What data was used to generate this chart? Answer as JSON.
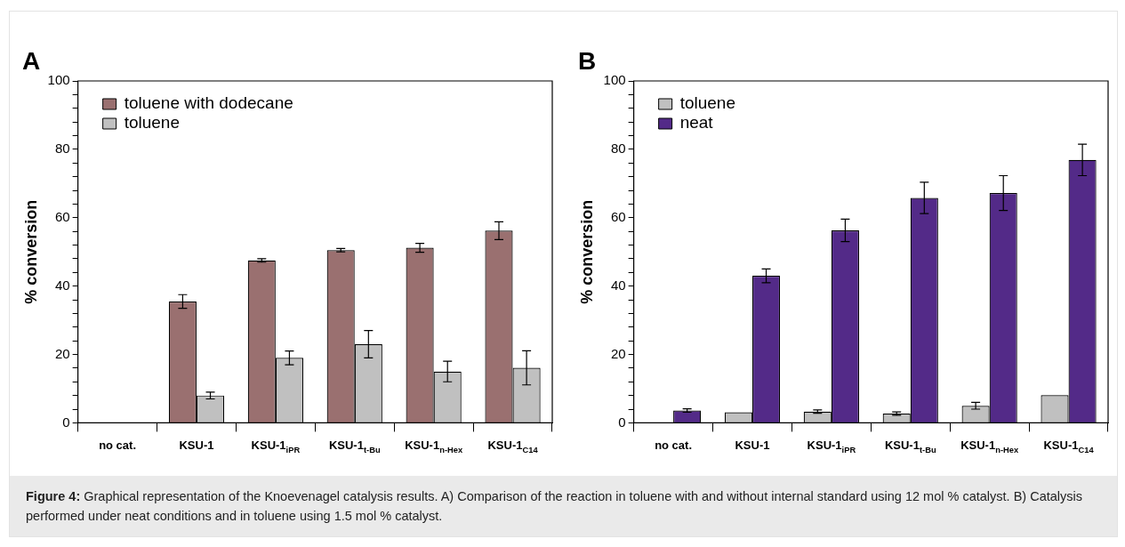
{
  "chart_data": [
    {
      "type": "bar",
      "title": "A",
      "ylabel": "% conversion",
      "categories": [
        "no cat.",
        "KSU-1",
        "KSU-1$_{iPR}$",
        "KSU-1$_{t-Bu}$",
        "KSU-1$_{n-Hex}$",
        "KSU-1$_{C14}$"
      ],
      "series": [
        {
          "name": "toluene with dodecane",
          "color": "#9a7070",
          "values": [
            0,
            35.5,
            47.5,
            50.5,
            51.2,
            56.2
          ],
          "errors": [
            null,
            2,
            0.5,
            0.5,
            1.3,
            2.6
          ]
        },
        {
          "name": "toluene",
          "color": "#c0c0c0",
          "values": [
            0,
            8,
            19,
            23,
            15,
            16.1
          ],
          "errors": [
            null,
            1,
            2,
            4,
            3,
            5
          ]
        }
      ],
      "ylim": [
        0,
        100
      ],
      "yticks": [
        0,
        {
          "value": 4,
          "label": null
        },
        {
          "value": 8,
          "label": null
        },
        {
          "value": 12,
          "label": null
        },
        {
          "value": 16,
          "label": null
        },
        20,
        {
          "value": 24,
          "label": null
        },
        {
          "value": 28,
          "label": null
        },
        {
          "value": 32,
          "label": null
        },
        {
          "value": 36,
          "label": null
        },
        40,
        {
          "value": 44,
          "label": null
        },
        {
          "value": 48,
          "label": null
        },
        {
          "value": 52,
          "label": null
        },
        {
          "value": 56,
          "label": null
        },
        60,
        {
          "value": 64,
          "label": null
        },
        {
          "value": 68,
          "label": null
        },
        {
          "value": 72,
          "label": null
        },
        {
          "value": 76,
          "label": null
        },
        80,
        {
          "value": 84,
          "label": null
        },
        {
          "value": 88,
          "label": null
        },
        {
          "value": 92,
          "label": null
        },
        {
          "value": 96,
          "label": null
        },
        100
      ],
      "grid": false,
      "legend": "top left",
      "annotations": [
        "Figure 4: Graphical representation of the Knoevenagel catalysis results. A) Comparison of the reaction in toluene with and without internal standard using 12 mol % catalyst. B) Catalysis performed under neat conditions and in toluene using 1.5 mol % catalyst."
      ]
    },
    {
      "type": "bar",
      "title": "B",
      "ylabel": "% conversion",
      "categories": [
        "no cat.",
        "KSU-1",
        "KSU-1$_{iPR}$",
        "KSU-1$_{t-Bu}$",
        "KSU-1$_{n-Hex}$",
        "KSU-1$_{C14}$"
      ],
      "series": [
        {
          "name": "toluene",
          "color": "#c0c0c0",
          "values": [
            0,
            3.1,
            3.3,
            2.7,
            5,
            8.1
          ],
          "errors": [
            null,
            null,
            0.5,
            0.5,
            1,
            null
          ]
        },
        {
          "name": "neat",
          "color": "#532a88",
          "values": [
            3.6,
            43,
            56.3,
            65.8,
            67.2,
            76.9
          ],
          "errors": [
            0.5,
            2,
            3.3,
            4.6,
            5.1,
            4.6
          ]
        }
      ],
      "ylim": [
        0,
        100
      ],
      "yticks": [
        0,
        {
          "value": 4,
          "label": null
        },
        {
          "value": 8,
          "label": null
        },
        {
          "value": 12,
          "label": null
        },
        {
          "value": 16,
          "label": null
        },
        20,
        {
          "value": 24,
          "label": null
        },
        {
          "value": 28,
          "label": null
        },
        {
          "value": 32,
          "label": null
        },
        {
          "value": 36,
          "label": null
        },
        40,
        {
          "value": 44,
          "label": null
        },
        {
          "value": 48,
          "label": null
        },
        {
          "value": 52,
          "label": null
        },
        {
          "value": 56,
          "label": null
        },
        60,
        {
          "value": 64,
          "label": null
        },
        {
          "value": 68,
          "label": null
        },
        {
          "value": 72,
          "label": null
        },
        {
          "value": 76,
          "label": null
        },
        80,
        {
          "value": 84,
          "label": null
        },
        {
          "value": 88,
          "label": null
        },
        {
          "value": 92,
          "label": null
        },
        {
          "value": 96,
          "label": null
        },
        100
      ],
      "grid": false,
      "legend": "top left"
    }
  ]
}
